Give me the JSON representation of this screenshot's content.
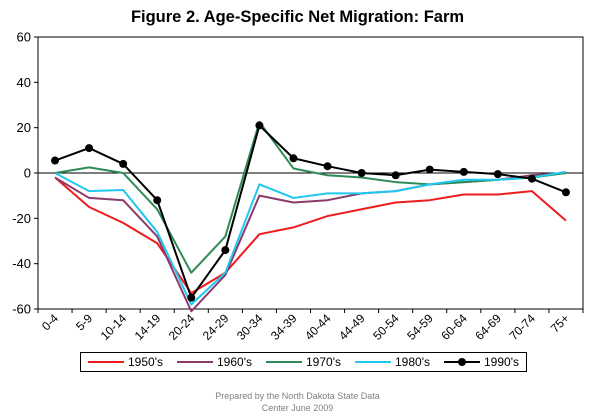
{
  "chart_data": {
    "type": "line",
    "title": "Figure 2. Age-Specific Net Migration: Farm",
    "xlabel": "",
    "ylabel": "",
    "ylim": [
      -60,
      60
    ],
    "yticks": [
      -60,
      -40,
      -20,
      0,
      20,
      40,
      60
    ],
    "categories": [
      "0-4",
      "5-9",
      "10-14",
      "14-19",
      "20-24",
      "24-29",
      "30-34",
      "34-39",
      "40-44",
      "44-49",
      "50-54",
      "54-59",
      "60-64",
      "64-69",
      "70-74",
      "75+"
    ],
    "grid": false,
    "legend_position": "bottom",
    "series": [
      {
        "name": "1950's",
        "color": "#ee1c1c",
        "marker": false,
        "values": [
          -2,
          -15,
          -22,
          -31,
          -53,
          -44,
          -27,
          -24,
          -19,
          -16,
          -13,
          -12,
          -9.5,
          -9.5,
          -8,
          -21
        ]
      },
      {
        "name": "1960's",
        "color": "#8b3a6b",
        "marker": false,
        "values": [
          -2,
          -11,
          -12,
          -28,
          -61,
          -45,
          -10,
          -13,
          -12,
          -9,
          -8,
          -5,
          -4,
          -3,
          -1,
          0
        ]
      },
      {
        "name": "1970's",
        "color": "#2e8b57",
        "marker": false,
        "values": [
          0,
          2.5,
          0,
          -16,
          -44,
          -28,
          22.5,
          2,
          -1,
          -2,
          -4,
          -5,
          -4,
          -3,
          -2,
          0
        ]
      },
      {
        "name": "1980's",
        "color": "#1ec8f0",
        "marker": false,
        "values": [
          0,
          -8,
          -7.5,
          -26,
          -58,
          -44,
          -5,
          -11,
          -9,
          -9,
          -8,
          -5,
          -3,
          -3,
          -2,
          0.5
        ]
      },
      {
        "name": "1990's",
        "color": "#000000",
        "marker": true,
        "values": [
          5.5,
          11,
          4,
          -12,
          -55,
          -34,
          21,
          6.5,
          3,
          0,
          -1,
          1.5,
          0.5,
          -0.5,
          -2.5,
          -8.5
        ]
      }
    ]
  },
  "footnote": {
    "line1": "Prepared by the North Dakota State Data",
    "line2": "Center June 2009"
  }
}
